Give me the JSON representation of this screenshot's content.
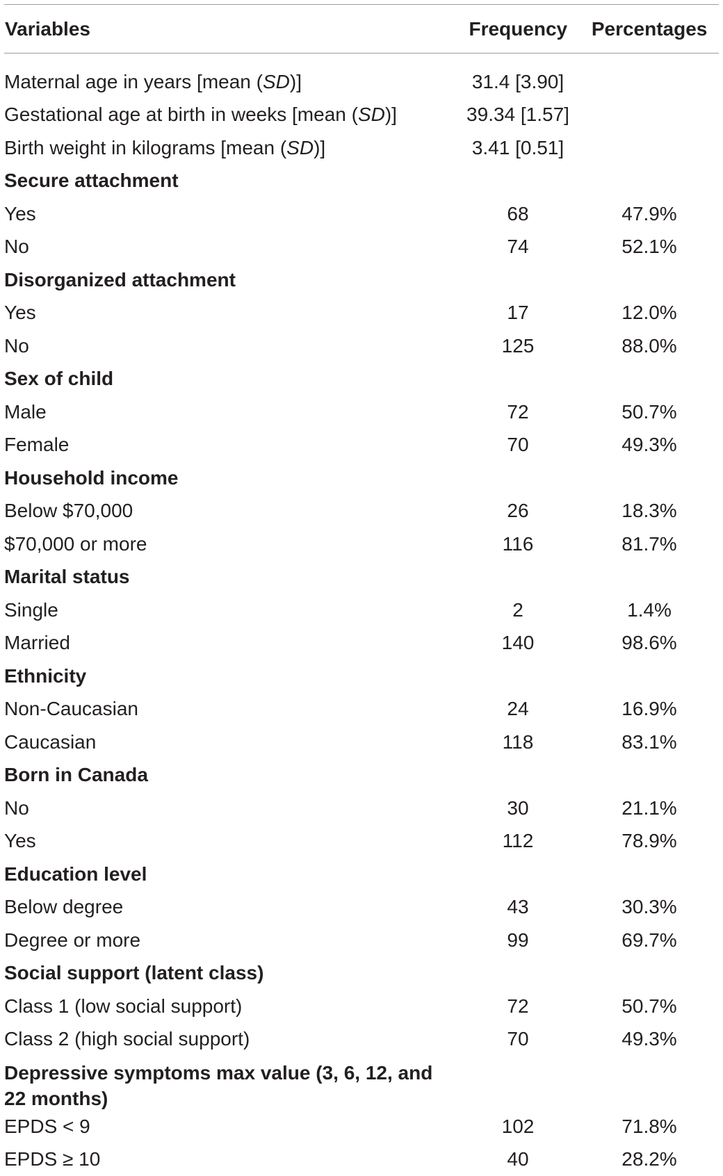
{
  "table": {
    "headers": {
      "variables": "Variables",
      "frequency": "Frequency",
      "percentages": "Percentages"
    },
    "rows": [
      {
        "type": "data",
        "label_parts": [
          "Maternal age in years [mean (",
          "SD",
          ")]"
        ],
        "frequency": "31.4 [3.90]",
        "percentage": ""
      },
      {
        "type": "data",
        "label_parts": [
          "Gestational age at birth in weeks [mean (",
          "SD",
          ")]"
        ],
        "frequency": "39.34 [1.57]",
        "percentage": ""
      },
      {
        "type": "data",
        "label_parts": [
          "Birth weight in kilograms [mean (",
          "SD",
          ")]"
        ],
        "frequency": "3.41 [0.51]",
        "percentage": ""
      },
      {
        "type": "section",
        "label": "Secure attachment"
      },
      {
        "type": "data",
        "label": "Yes",
        "frequency": "68",
        "percentage": "47.9%"
      },
      {
        "type": "data",
        "label": "No",
        "frequency": "74",
        "percentage": "52.1%"
      },
      {
        "type": "section",
        "label": "Disorganized attachment"
      },
      {
        "type": "data",
        "label": "Yes",
        "frequency": "17",
        "percentage": "12.0%"
      },
      {
        "type": "data",
        "label": "No",
        "frequency": "125",
        "percentage": "88.0%"
      },
      {
        "type": "section",
        "label": "Sex of child"
      },
      {
        "type": "data",
        "label": "Male",
        "frequency": "72",
        "percentage": "50.7%"
      },
      {
        "type": "data",
        "label": "Female",
        "frequency": "70",
        "percentage": "49.3%"
      },
      {
        "type": "section",
        "label": "Household income"
      },
      {
        "type": "data",
        "label": "Below $70,000",
        "frequency": "26",
        "percentage": "18.3%"
      },
      {
        "type": "data",
        "label": "$70,000 or more",
        "frequency": "116",
        "percentage": "81.7%"
      },
      {
        "type": "section",
        "label": "Marital status"
      },
      {
        "type": "data",
        "label": "Single",
        "frequency": "2",
        "percentage": "1.4%"
      },
      {
        "type": "data",
        "label": "Married",
        "frequency": "140",
        "percentage": "98.6%"
      },
      {
        "type": "section",
        "label": "Ethnicity"
      },
      {
        "type": "data",
        "label": "Non-Caucasian",
        "frequency": "24",
        "percentage": "16.9%"
      },
      {
        "type": "data",
        "label": "Caucasian",
        "frequency": "118",
        "percentage": "83.1%"
      },
      {
        "type": "section",
        "label": "Born in Canada"
      },
      {
        "type": "data",
        "label": "No",
        "frequency": "30",
        "percentage": "21.1%"
      },
      {
        "type": "data",
        "label": "Yes",
        "frequency": "112",
        "percentage": "78.9%"
      },
      {
        "type": "section",
        "label": "Education level"
      },
      {
        "type": "data",
        "label": "Below degree",
        "frequency": "43",
        "percentage": "30.3%"
      },
      {
        "type": "data",
        "label": "Degree or more",
        "frequency": "99",
        "percentage": "69.7%"
      },
      {
        "type": "section",
        "label": "Social support (latent class)"
      },
      {
        "type": "data",
        "label": "Class 1 (low social support)",
        "frequency": "72",
        "percentage": "50.7%"
      },
      {
        "type": "data",
        "label": "Class 2 (high social support)",
        "frequency": "70",
        "percentage": "49.3%"
      },
      {
        "type": "section",
        "label": "Depressive symptoms max value (3, 6, 12, and 22 months)",
        "label_lines": [
          "Depressive symptoms max value (3, 6, 12, and",
          "22 months)"
        ]
      },
      {
        "type": "data",
        "label": "EPDS < 9",
        "frequency": "102",
        "percentage": "71.8%"
      },
      {
        "type": "data",
        "label": "EPDS ≥ 10",
        "frequency": "40",
        "percentage": "28.2%"
      }
    ]
  }
}
